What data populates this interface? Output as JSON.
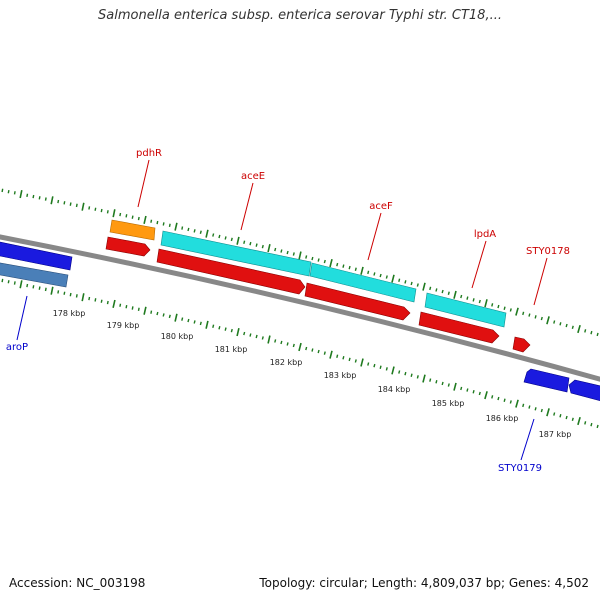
{
  "header": {
    "title": "Salmonella enterica subsp. enterica serovar Typhi str. CT18,..."
  },
  "footer": {
    "accession": "Accession: NC_003198",
    "topology": "Topology: circular; Length: 4,809,037 bp; Genes: 4,502"
  },
  "colors": {
    "backbone": "#888888",
    "tick": "#1f7a1f",
    "forward_label": "#cc0000",
    "reverse_label": "#0000cc",
    "gene_red": "#e01010",
    "cds_cyan": "#22dddd",
    "orange": "#ff9910",
    "blue": "#1a1adf",
    "steelblue": "#4a7fb8"
  },
  "scale": {
    "labels": [
      "178 kbp",
      "179 kbp",
      "180 kbp",
      "181 kbp",
      "182 kbp",
      "183 kbp",
      "184 kbp",
      "185 kbp",
      "186 kbp",
      "187 kbp"
    ]
  },
  "genes": [
    {
      "name": "pdhR",
      "strand": "forward"
    },
    {
      "name": "aceE",
      "strand": "forward"
    },
    {
      "name": "aceF",
      "strand": "forward"
    },
    {
      "name": "lpdA",
      "strand": "forward"
    },
    {
      "name": "STY0178",
      "strand": "forward"
    },
    {
      "name": "aroP",
      "strand": "reverse"
    },
    {
      "name": "STY0179",
      "strand": "reverse"
    }
  ]
}
